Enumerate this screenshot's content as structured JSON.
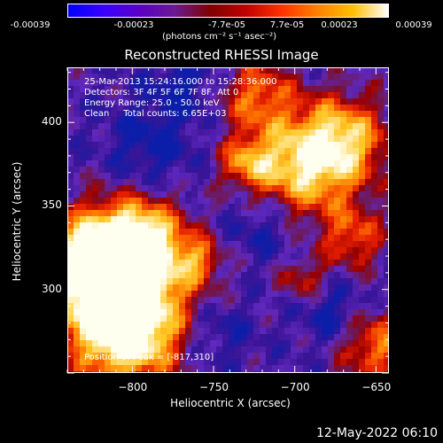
{
  "colorbar": {
    "tick_labels": [
      "-0.00039",
      "-0.00023",
      "-7.7e-05",
      "7.7e-05",
      "0.00023",
      "0.00039"
    ],
    "units_label": "(photons cm⁻² s⁻¹ asec⁻²)",
    "colors": [
      "#0000ff",
      "#3a00ff",
      "#5a00c8",
      "#6a1a90",
      "#800000",
      "#c00000",
      "#ff3000",
      "#ff8000",
      "#ffc000",
      "#ffffff"
    ]
  },
  "chart_data": {
    "type": "heatmap",
    "title": "Reconstructed RHESSI Image",
    "xlabel": "Heliocentric X (arcsec)",
    "ylabel": "Heliocentric Y (arcsec)",
    "xlim": [
      -840,
      -642
    ],
    "ylim": [
      250,
      433
    ],
    "x_ticks": [
      -800,
      -750,
      -700,
      -650
    ],
    "x_tick_labels": [
      "−800",
      "−750",
      "−700",
      "−650"
    ],
    "y_ticks": [
      300,
      350,
      400
    ],
    "y_tick_labels": [
      "300",
      "350",
      "400"
    ],
    "annotations": [
      "25-Mar-2013 15:24:16.000 to 15:28:36.000",
      "Detectors: 3F 4F 5F 6F 7F 8F, Att 0",
      "Energy Range: 25.0 - 50.0 keV",
      "Clean     Total counts: 6.65E+03"
    ],
    "peak_label": "Position of Peak = [-817,310]",
    "peak": [
      -817,
      310
    ]
  },
  "footer": {
    "timestamp": "12-May-2022 06:10"
  }
}
